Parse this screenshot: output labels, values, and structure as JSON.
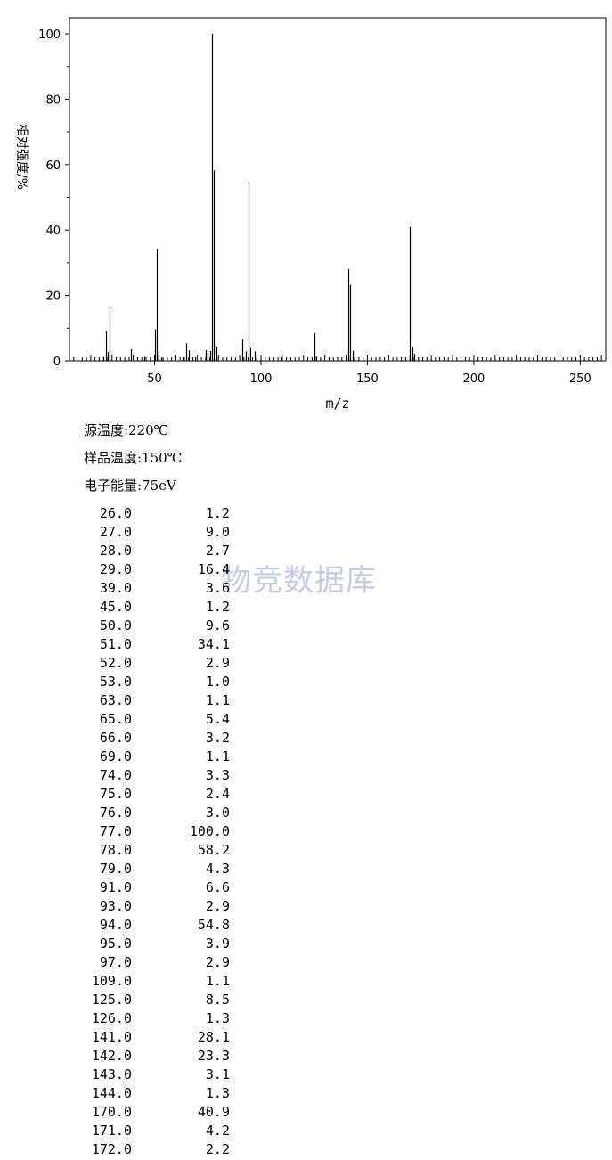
{
  "chart_data": {
    "type": "bar",
    "xlabel": "m/z",
    "ylabel": "相对强度/%",
    "xlim": [
      10,
      262
    ],
    "ylim": [
      0,
      100
    ],
    "x_ticks": [
      "50",
      "100",
      "150",
      "200",
      "250"
    ],
    "y_ticks": [
      "0",
      "20",
      "40",
      "60",
      "80",
      "100"
    ],
    "grid": false,
    "peaks": [
      {
        "mz": 26.0,
        "intensity": 1.2
      },
      {
        "mz": 27.0,
        "intensity": 9.0
      },
      {
        "mz": 28.0,
        "intensity": 2.7
      },
      {
        "mz": 29.0,
        "intensity": 16.4
      },
      {
        "mz": 39.0,
        "intensity": 3.6
      },
      {
        "mz": 45.0,
        "intensity": 1.2
      },
      {
        "mz": 50.0,
        "intensity": 9.6
      },
      {
        "mz": 51.0,
        "intensity": 34.1
      },
      {
        "mz": 52.0,
        "intensity": 2.9
      },
      {
        "mz": 53.0,
        "intensity": 1.0
      },
      {
        "mz": 63.0,
        "intensity": 1.1
      },
      {
        "mz": 65.0,
        "intensity": 5.4
      },
      {
        "mz": 66.0,
        "intensity": 3.2
      },
      {
        "mz": 69.0,
        "intensity": 1.1
      },
      {
        "mz": 74.0,
        "intensity": 3.3
      },
      {
        "mz": 75.0,
        "intensity": 2.4
      },
      {
        "mz": 76.0,
        "intensity": 3.0
      },
      {
        "mz": 77.0,
        "intensity": 100.0
      },
      {
        "mz": 78.0,
        "intensity": 58.2
      },
      {
        "mz": 79.0,
        "intensity": 4.3
      },
      {
        "mz": 91.0,
        "intensity": 6.6
      },
      {
        "mz": 93.0,
        "intensity": 2.9
      },
      {
        "mz": 94.0,
        "intensity": 54.8
      },
      {
        "mz": 95.0,
        "intensity": 3.9
      },
      {
        "mz": 97.0,
        "intensity": 2.9
      },
      {
        "mz": 109.0,
        "intensity": 1.1
      },
      {
        "mz": 125.0,
        "intensity": 8.5
      },
      {
        "mz": 126.0,
        "intensity": 1.3
      },
      {
        "mz": 141.0,
        "intensity": 28.1
      },
      {
        "mz": 142.0,
        "intensity": 23.3
      },
      {
        "mz": 143.0,
        "intensity": 3.1
      },
      {
        "mz": 144.0,
        "intensity": 1.3
      },
      {
        "mz": 170.0,
        "intensity": 40.9
      },
      {
        "mz": 171.0,
        "intensity": 4.2
      },
      {
        "mz": 172.0,
        "intensity": 2.2
      }
    ]
  },
  "conditions": {
    "source_temp": "源温度:220℃",
    "sample_temp": "样品温度:150℃",
    "electron_energy": "电子能量:75eV"
  },
  "watermark": "物竞数据库",
  "table_rows": [
    [
      "26.0",
      "1.2"
    ],
    [
      "27.0",
      "9.0"
    ],
    [
      "28.0",
      "2.7"
    ],
    [
      "29.0",
      "16.4"
    ],
    [
      "39.0",
      "3.6"
    ],
    [
      "45.0",
      "1.2"
    ],
    [
      "50.0",
      "9.6"
    ],
    [
      "51.0",
      "34.1"
    ],
    [
      "52.0",
      "2.9"
    ],
    [
      "53.0",
      "1.0"
    ],
    [
      "63.0",
      "1.1"
    ],
    [
      "65.0",
      "5.4"
    ],
    [
      "66.0",
      "3.2"
    ],
    [
      "69.0",
      "1.1"
    ],
    [
      "74.0",
      "3.3"
    ],
    [
      "75.0",
      "2.4"
    ],
    [
      "76.0",
      "3.0"
    ],
    [
      "77.0",
      "100.0"
    ],
    [
      "78.0",
      "58.2"
    ],
    [
      "79.0",
      "4.3"
    ],
    [
      "91.0",
      "6.6"
    ],
    [
      "93.0",
      "2.9"
    ],
    [
      "94.0",
      "54.8"
    ],
    [
      "95.0",
      "3.9"
    ],
    [
      "97.0",
      "2.9"
    ],
    [
      "109.0",
      "1.1"
    ],
    [
      "125.0",
      "8.5"
    ],
    [
      "126.0",
      "1.3"
    ],
    [
      "141.0",
      "28.1"
    ],
    [
      "142.0",
      "23.3"
    ],
    [
      "143.0",
      "3.1"
    ],
    [
      "144.0",
      "1.3"
    ],
    [
      "170.0",
      "40.9"
    ],
    [
      "171.0",
      "4.2"
    ],
    [
      "172.0",
      "2.2"
    ]
  ]
}
